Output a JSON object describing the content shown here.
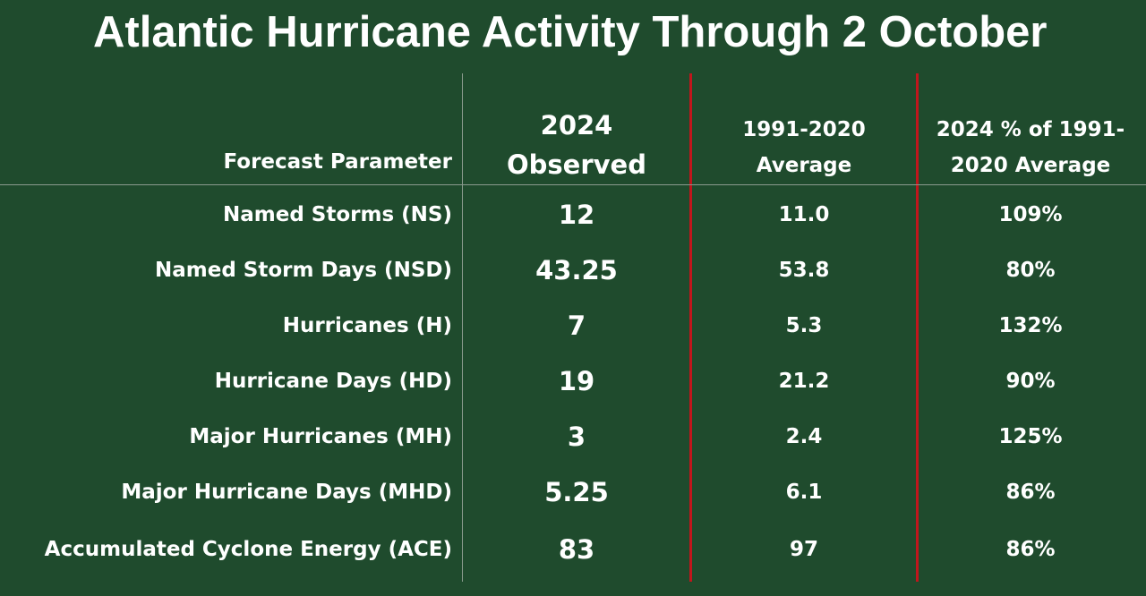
{
  "title": "Atlantic Hurricane Activity Through 2 October",
  "colors": {
    "background": "#1f4b2d",
    "text": "#ffffff",
    "divider_red": "#c0161c",
    "divider_gray": "#8a9a8e"
  },
  "chart_data": {
    "type": "table",
    "title": "Atlantic Hurricane Activity Through 2 October",
    "columns": [
      "Forecast Parameter",
      [
        "2024",
        "Observed"
      ],
      [
        "1991-2020",
        "Average"
      ],
      [
        "2024 % of 1991-",
        "2020 Average"
      ]
    ],
    "rows": [
      {
        "parameter": "Named Storms (NS)",
        "observed": "12",
        "average": "11.0",
        "percent": "109%"
      },
      {
        "parameter": "Named Storm Days (NSD)",
        "observed": "43.25",
        "average": "53.8",
        "percent": "80%"
      },
      {
        "parameter": "Hurricanes (H)",
        "observed": "7",
        "average": "5.3",
        "percent": "132%"
      },
      {
        "parameter": "Hurricane Days (HD)",
        "observed": "19",
        "average": "21.2",
        "percent": "90%"
      },
      {
        "parameter": "Major Hurricanes (MH)",
        "observed": "3",
        "average": "2.4",
        "percent": "125%"
      },
      {
        "parameter": "Major Hurricane Days (MHD)",
        "observed": "5.25",
        "average": "6.1",
        "percent": "86%"
      },
      {
        "parameter": "Accumulated Cyclone Energy (ACE)",
        "observed": "83",
        "average": "97",
        "percent": "86%"
      }
    ]
  }
}
